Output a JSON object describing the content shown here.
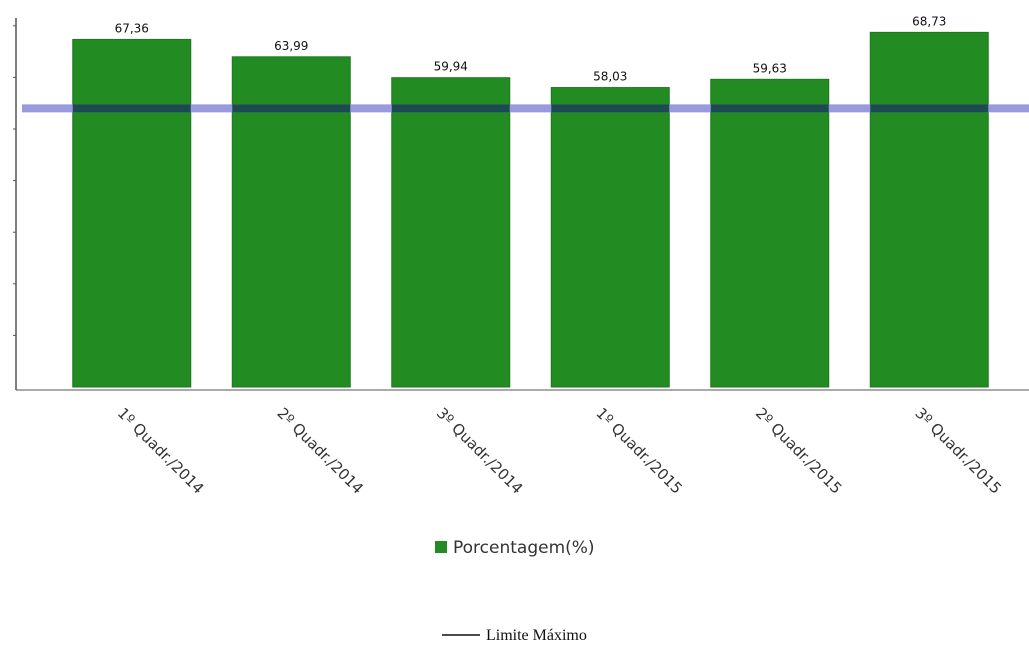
{
  "chart_data": {
    "type": "bar",
    "categories": [
      "1º Quadr./2014",
      "2º Quadr./2014",
      "3º Quadr./2014",
      "1º Quadr./2015",
      "2º Quadr./2015",
      "3º Quadr./2015"
    ],
    "series": [
      {
        "name": "Porcentagem(%)",
        "values": [
          67.36,
          63.99,
          59.94,
          58.03,
          59.63,
          68.73
        ],
        "labels": [
          "67,36",
          "63,99",
          "59,94",
          "58,03",
          "59,63",
          "68,73"
        ],
        "color": "#228b22"
      }
    ],
    "reference_line": {
      "name": "Limite Máximo",
      "value": 54,
      "color": "#9999dd"
    },
    "ylim": [
      0,
      74
    ],
    "grid": false,
    "legend_position": "bottom"
  },
  "colors": {
    "bar": "#228b22",
    "bar_edge": "#1d7a1d",
    "limit_line": "#9999dd",
    "limit_line_overlap": "#1b4a52",
    "axis": "#555555"
  }
}
